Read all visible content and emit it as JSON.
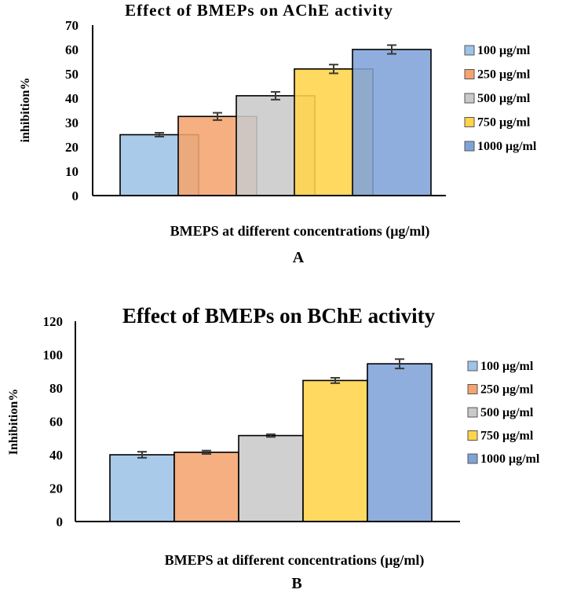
{
  "chart_data": [
    {
      "type": "bar",
      "panel_label": "A",
      "title": "Effect of BMEPs on AChE activity",
      "xlabel": "BMEPS at different concentrations (μg/ml)",
      "ylabel": "inhibition%",
      "ylim": [
        0,
        70
      ],
      "yticks": [
        0,
        10,
        20,
        30,
        40,
        50,
        60,
        70
      ],
      "grid": false,
      "legend_position": "right",
      "series": [
        {
          "name": "100 μg/ml",
          "value": 25,
          "error": 0.8,
          "color": "#9dc3e6"
        },
        {
          "name": "250 μg/ml",
          "value": 32.5,
          "error": 1.5,
          "color": "#f4a46e"
        },
        {
          "name": "500 μg/ml",
          "value": 41,
          "error": 1.6,
          "color": "#c9c9c9"
        },
        {
          "name": "750 μg/ml",
          "value": 52,
          "error": 1.8,
          "color": "#ffd44a"
        },
        {
          "name": "1000 μg/ml",
          "value": 60,
          "error": 1.8,
          "color": "#7fa3d8"
        }
      ]
    },
    {
      "type": "bar",
      "panel_label": "B",
      "title": "Effect of BMEPs on BChE activity",
      "xlabel": "BMEPS at different concentrations (μg/ml)",
      "ylabel": "Inhibition%",
      "ylim": [
        0,
        120
      ],
      "yticks": [
        0,
        20,
        40,
        60,
        80,
        100,
        120
      ],
      "grid": false,
      "legend_position": "right",
      "series": [
        {
          "name": "100 μg/ml",
          "value": 40,
          "error": 1.8,
          "color": "#9dc3e6"
        },
        {
          "name": "250 μg/ml",
          "value": 41.5,
          "error": 1.0,
          "color": "#f4a46e"
        },
        {
          "name": "500 μg/ml",
          "value": 51.5,
          "error": 0.8,
          "color": "#c9c9c9"
        },
        {
          "name": "750 μg/ml",
          "value": 84.5,
          "error": 1.6,
          "color": "#ffd44a"
        },
        {
          "name": "1000 μg/ml",
          "value": 94.5,
          "error": 2.8,
          "color": "#7fa3d8"
        }
      ]
    }
  ]
}
